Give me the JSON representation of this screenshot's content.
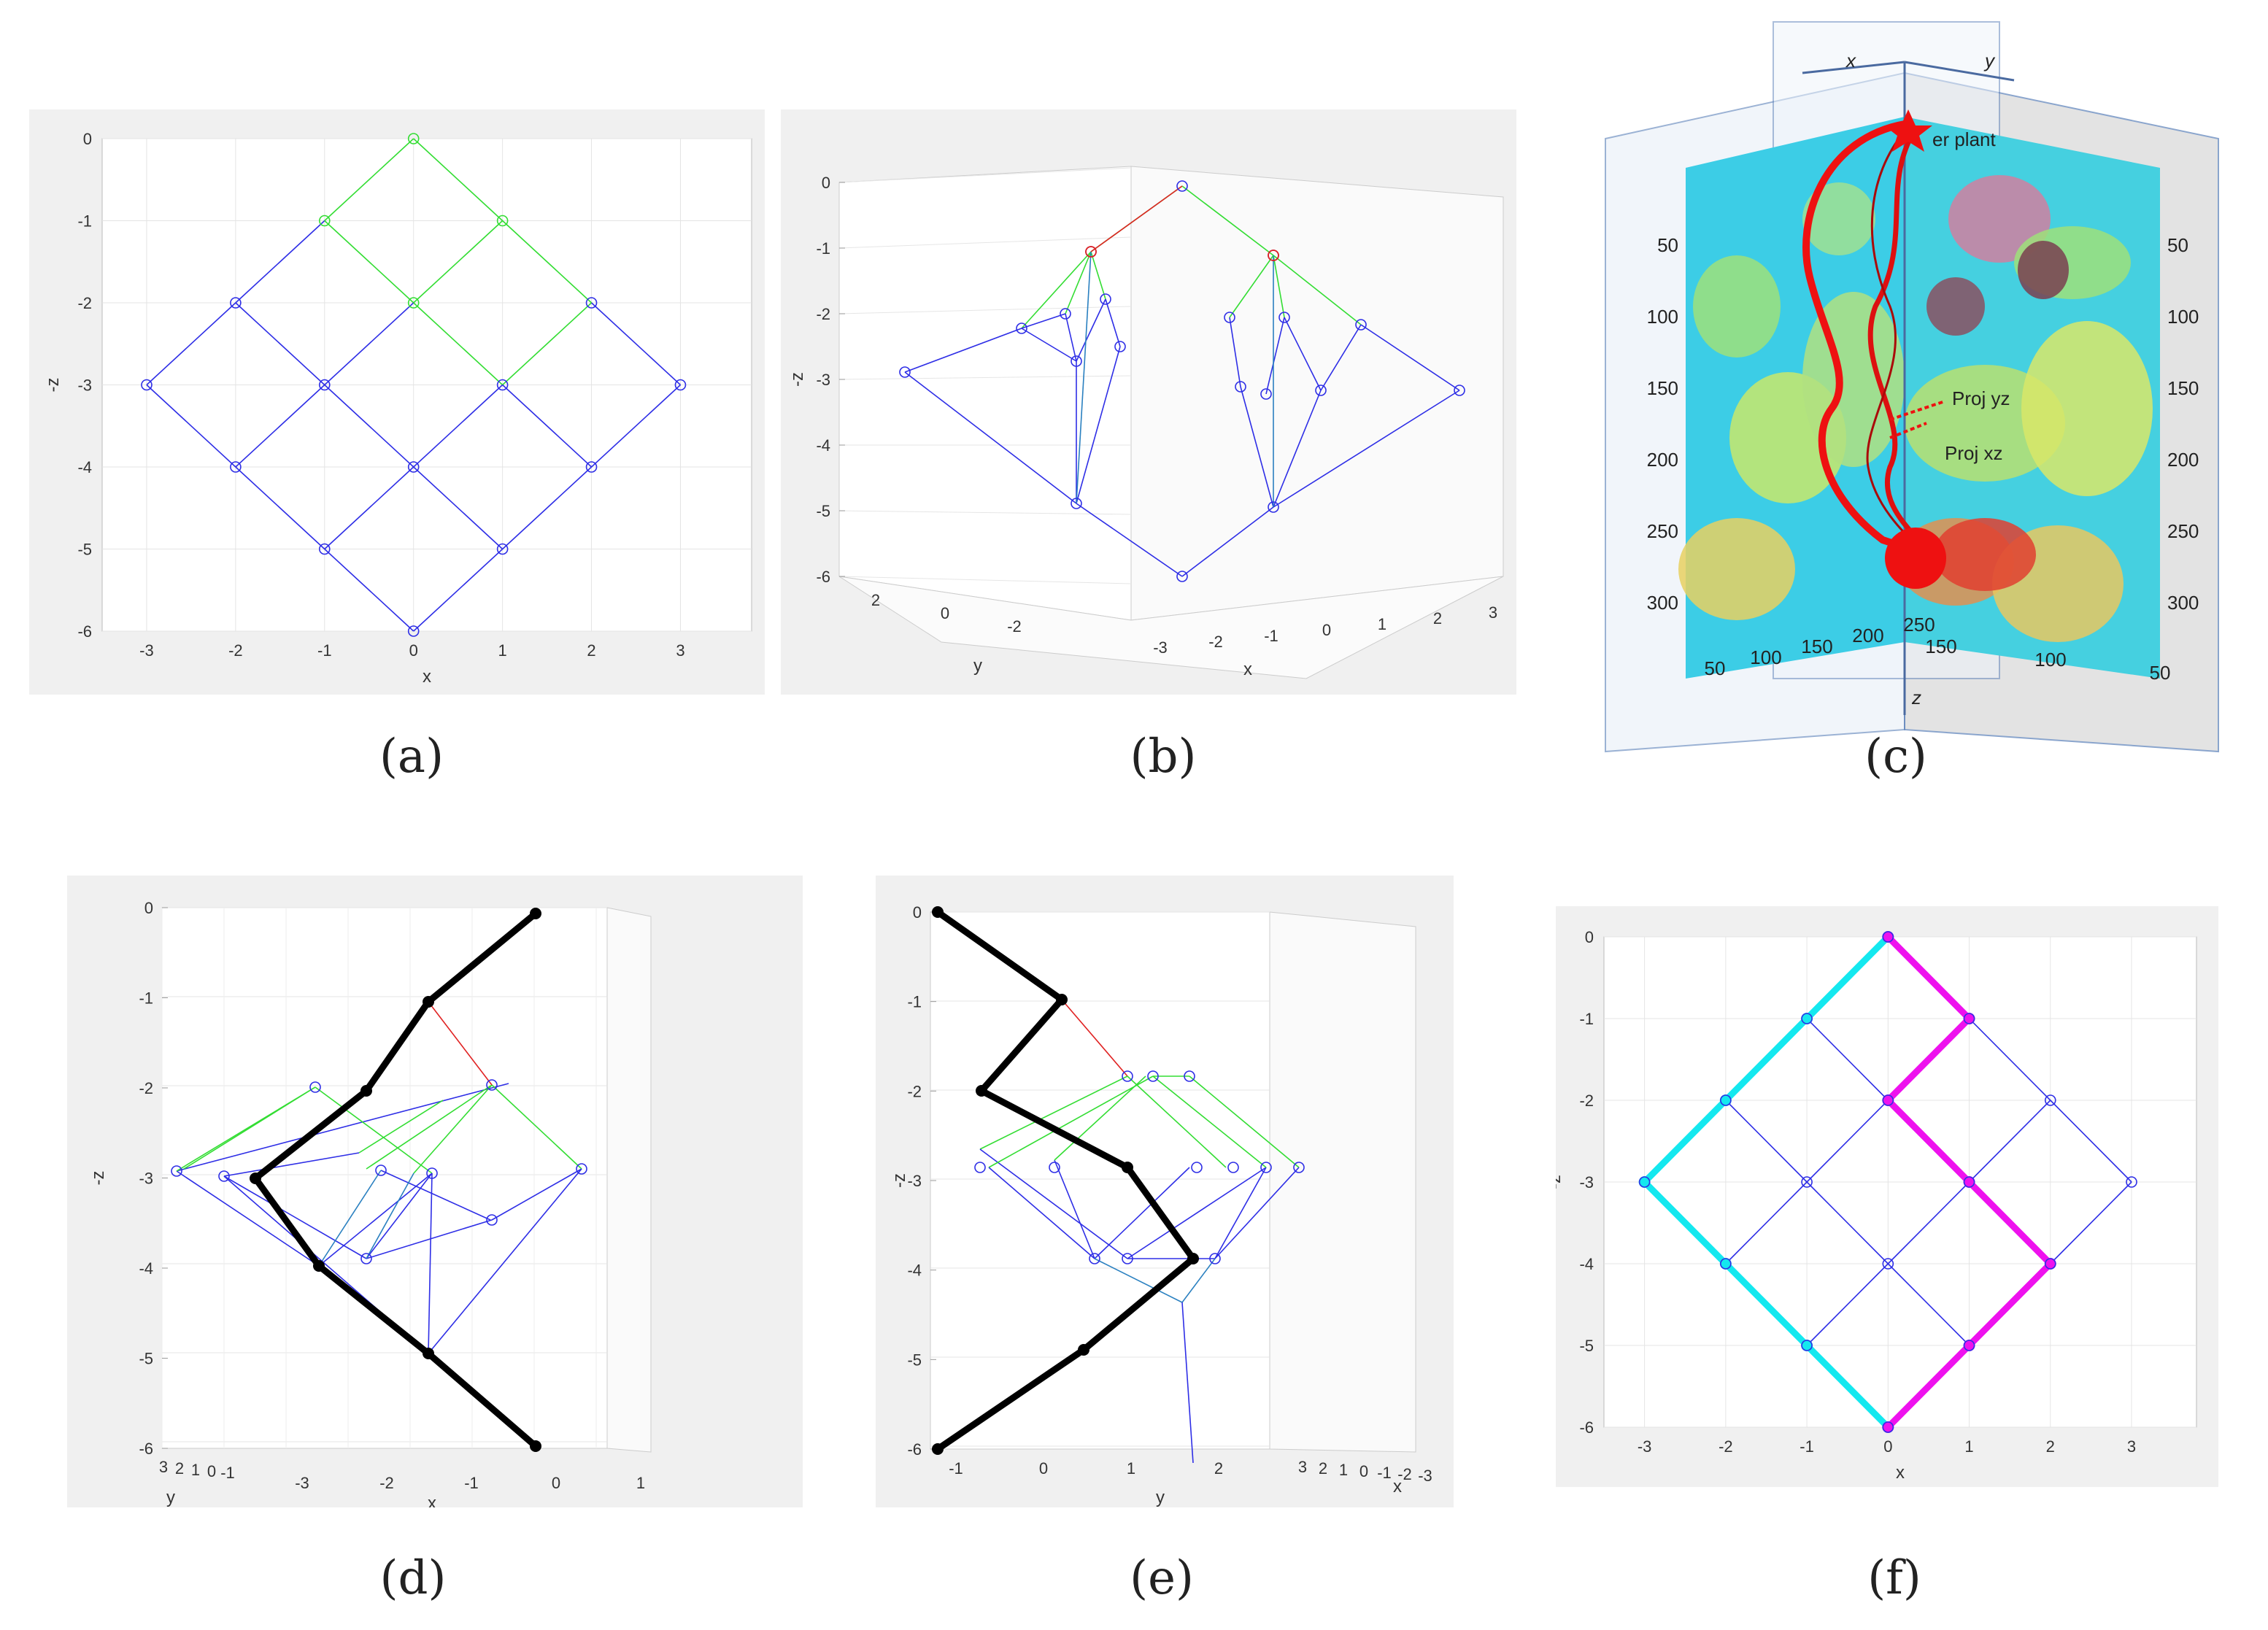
{
  "captions": [
    "(a)",
    "(b)",
    "(c)",
    "(d)",
    "(e)",
    "(f)"
  ],
  "colors": {
    "lattice": "#2e2ee6",
    "path_green": "#33dd33",
    "highlight_red": "#e02222",
    "cyan": "#14e8ef",
    "magenta": "#ee11ee",
    "black": "#000000",
    "panel_bg": "#f0f0f0"
  },
  "chart_data": [
    {
      "id": "a",
      "type": "scatter",
      "xlabel": "x",
      "ylabel": "-z",
      "xlim": [
        -3.5,
        3.8
      ],
      "ylim": [
        -6,
        0
      ],
      "xticks": [
        "-3",
        "-2",
        "-1",
        "0",
        "1",
        "2",
        "3"
      ],
      "yticks": [
        "0",
        "-1",
        "-2",
        "-3",
        "-4",
        "-5",
        "-6"
      ],
      "grid": true,
      "nodes": [
        [
          0,
          0
        ],
        [
          -1,
          -1
        ],
        [
          1,
          -1
        ],
        [
          -2,
          -2
        ],
        [
          0,
          -2
        ],
        [
          2,
          -2
        ],
        [
          -3,
          -3
        ],
        [
          -1,
          -3
        ],
        [
          1,
          -3
        ],
        [
          3,
          -3
        ],
        [
          -2,
          -4
        ],
        [
          0,
          -4
        ],
        [
          2,
          -4
        ],
        [
          -1,
          -5
        ],
        [
          1,
          -5
        ],
        [
          0,
          -6
        ]
      ],
      "green_edges": [
        [
          [
            0,
            0
          ],
          [
            1,
            -1
          ]
        ],
        [
          [
            0,
            0
          ],
          [
            -1,
            -1
          ]
        ],
        [
          [
            1,
            -1
          ],
          [
            2,
            -2
          ]
        ],
        [
          [
            1,
            -1
          ],
          [
            0,
            -2
          ]
        ],
        [
          [
            -1,
            -1
          ],
          [
            0,
            -2
          ]
        ],
        [
          [
            0,
            -2
          ],
          [
            1,
            -3
          ]
        ],
        [
          [
            2,
            -2
          ],
          [
            1,
            -3
          ]
        ]
      ],
      "green_nodes": [
        [
          0,
          0
        ],
        [
          -1,
          -1
        ],
        [
          1,
          -1
        ],
        [
          0,
          -2
        ]
      ]
    },
    {
      "id": "b",
      "type": "scatter3d",
      "xlabel": "x",
      "ylabel": "y",
      "zlabel": "-z",
      "zticks": [
        "0",
        "-1",
        "-2",
        "-3",
        "-4",
        "-5",
        "-6"
      ],
      "xticks": [
        "-3",
        "-2",
        "-1",
        "0",
        "1",
        "2",
        "3"
      ],
      "yticks": [
        "2",
        "0",
        "-2"
      ],
      "grid": true
    },
    {
      "id": "c",
      "type": "other",
      "axis_labels": [
        "x",
        "y",
        "z"
      ],
      "annotations": [
        "Proj yz",
        "Proj xz",
        "er plant"
      ],
      "left_ticks": [
        "50",
        "100",
        "150",
        "200",
        "250",
        "300"
      ],
      "bottom_ticks": [
        "50",
        "100",
        "150",
        "200",
        "250"
      ],
      "right_ticks": [
        "50",
        "100",
        "150",
        "200",
        "250",
        "300"
      ],
      "right_bottom_ticks": [
        "150",
        "100",
        "50"
      ]
    },
    {
      "id": "d",
      "type": "line3d",
      "xlabel": "x",
      "ylabel": "y",
      "zlabel": "-z",
      "zticks": [
        "0",
        "-1",
        "-2",
        "-3",
        "-4",
        "-5",
        "-6"
      ],
      "xticks": [
        "-3",
        "-2",
        "-1",
        "0",
        "1"
      ],
      "yticks": [
        "3",
        "2",
        "1",
        "0",
        "-1"
      ],
      "grid": true,
      "black_path": [
        [
          0,
          0
        ],
        [
          -1.3,
          -1
        ],
        [
          -2.1,
          -2
        ],
        [
          -3.25,
          -3
        ],
        [
          -2.5,
          -4
        ],
        [
          -1.3,
          -5
        ],
        [
          0,
          -6
        ]
      ]
    },
    {
      "id": "e",
      "type": "line3d",
      "xlabel": "x",
      "ylabel": "y",
      "zlabel": "-z",
      "zticks": [
        "0",
        "-1",
        "-2",
        "-3",
        "-4",
        "-5",
        "-6"
      ],
      "xticks": [
        "3",
        "2",
        "1",
        "0",
        "-1",
        "-2",
        "-3"
      ],
      "yticks": [
        "-1",
        "0",
        "1",
        "2"
      ],
      "grid": true,
      "black_path": [
        [
          0.4,
          0
        ],
        [
          1.6,
          -1
        ],
        [
          0.9,
          -2
        ],
        [
          2.1,
          -3
        ],
        [
          2.8,
          -4
        ],
        [
          1.6,
          -5
        ],
        [
          0.4,
          -6
        ]
      ]
    },
    {
      "id": "f",
      "type": "scatter",
      "xlabel": "x",
      "ylabel": "-z",
      "xlim": [
        -3.5,
        3.8
      ],
      "ylim": [
        -6,
        0
      ],
      "xticks": [
        "-3",
        "-2",
        "-1",
        "0",
        "1",
        "2",
        "3"
      ],
      "yticks": [
        "0",
        "-1",
        "-2",
        "-3",
        "-4",
        "-5",
        "-6"
      ],
      "grid": true,
      "cyan_path": [
        [
          0,
          0
        ],
        [
          -1,
          -1
        ],
        [
          -2,
          -2
        ],
        [
          -3,
          -3
        ],
        [
          -2,
          -4
        ],
        [
          -1,
          -5
        ],
        [
          0,
          -6
        ]
      ],
      "magenta_path": [
        [
          0,
          0
        ],
        [
          1,
          -1
        ],
        [
          0,
          -2
        ],
        [
          1,
          -3
        ],
        [
          2,
          -4
        ],
        [
          1,
          -5
        ],
        [
          0,
          -6
        ]
      ]
    }
  ]
}
